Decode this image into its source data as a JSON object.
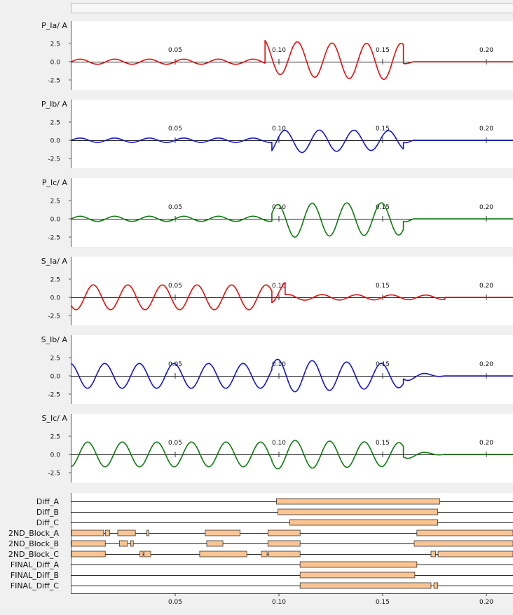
{
  "chart_data": {
    "type": "line",
    "x_range": [
      0.0,
      0.213
    ],
    "x_ticks": [
      0.05,
      0.1,
      0.15,
      0.2
    ],
    "x_tick_labels": [
      "0.05",
      "0.10",
      "0.15",
      "0.20"
    ],
    "y_ticks": [
      -2.5,
      0.0,
      2.5
    ],
    "y_tick_labels": [
      "-2.5",
      "0.0",
      "2.5"
    ],
    "ylim": [
      -3.5,
      4.8
    ],
    "grid": false,
    "colors": {
      "red": "#e01010",
      "blue": "#1515c8",
      "green": "#0f7a0f",
      "bar_fill": "#fcc491"
    },
    "panels": [
      {
        "label": "P_Ia/ A",
        "color": "#e01010",
        "series": [
          {
            "t0": 0.0,
            "t1": 0.0933,
            "amp": 0.35,
            "freq": 60,
            "phase": 0.0,
            "amp_end": 0.35,
            "offset": 0.0
          },
          {
            "t0": 0.0933,
            "t1": 0.16,
            "amp": 2.3,
            "freq": 60,
            "phase": 4.5,
            "amp_end": 2.5,
            "offset": 0.8
          },
          {
            "t0": 0.16,
            "t1": 0.165,
            "amp": 0.4,
            "freq": 60,
            "phase": 0.0,
            "amp_end": 0.0,
            "offset": 0.0
          },
          {
            "t0": 0.165,
            "t1": 0.213,
            "amp": 0.0,
            "freq": 60,
            "phase": 0.0,
            "amp_end": 0.0,
            "offset": 0.0
          }
        ]
      },
      {
        "label": "P_Ib/ A",
        "color": "#1515c8",
        "series": [
          {
            "t0": 0.0,
            "t1": 0.0966,
            "amp": 0.3,
            "freq": 60,
            "phase": 0.0,
            "amp_end": 0.3,
            "offset": 0.0
          },
          {
            "t0": 0.0966,
            "t1": 0.16,
            "amp": 1.6,
            "freq": 60,
            "phase": 0.5,
            "amp_end": 1.3,
            "offset": -0.3
          },
          {
            "t0": 0.16,
            "t1": 0.165,
            "amp": 0.5,
            "freq": 60,
            "phase": 0.0,
            "amp_end": 0.0,
            "offset": 0.0
          },
          {
            "t0": 0.165,
            "t1": 0.213,
            "amp": 0.0,
            "freq": 60,
            "phase": 0.0,
            "amp_end": 0.0,
            "offset": 0.0
          }
        ]
      },
      {
        "label": "P_Ic/ A",
        "color": "#0f7a0f",
        "series": [
          {
            "t0": 0.0,
            "t1": 0.0966,
            "amp": 0.35,
            "freq": 60,
            "phase": 0.0,
            "amp_end": 0.35,
            "offset": 0.0
          },
          {
            "t0": 0.0966,
            "t1": 0.16,
            "amp": 2.3,
            "freq": 60,
            "phase": 1.8,
            "amp_end": 2.2,
            "offset": -0.4
          },
          {
            "t0": 0.16,
            "t1": 0.165,
            "amp": 0.6,
            "freq": 60,
            "phase": 0.0,
            "amp_end": 0.0,
            "offset": 0.0
          },
          {
            "t0": 0.165,
            "t1": 0.213,
            "amp": 0.0,
            "freq": 60,
            "phase": 0.0,
            "amp_end": 0.0,
            "offset": 0.0
          }
        ]
      },
      {
        "label": "S_Ia/ A",
        "color": "#e01010",
        "series": [
          {
            "t0": 0.0,
            "t1": 0.0966,
            "amp": 1.7,
            "freq": 60,
            "phase": 3.9,
            "amp_end": 1.7,
            "offset": 0.0
          },
          {
            "t0": 0.0966,
            "t1": 0.103,
            "amp": 1.6,
            "freq": 60,
            "phase": 0.0,
            "amp_end": 1.6,
            "offset": 0.8
          },
          {
            "t0": 0.103,
            "t1": 0.18,
            "amp": 0.4,
            "freq": 60,
            "phase": 0.0,
            "amp_end": 0.3,
            "offset": 0.0
          },
          {
            "t0": 0.18,
            "t1": 0.213,
            "amp": 0.0,
            "freq": 60,
            "phase": 0.0,
            "amp_end": 0.0,
            "offset": 0.0
          }
        ]
      },
      {
        "label": "S_Ib/ A",
        "color": "#1515c8",
        "series": [
          {
            "t0": 0.0,
            "t1": 0.0966,
            "amp": 1.7,
            "freq": 60,
            "phase": 1.8,
            "amp_end": 1.7,
            "offset": 0.0
          },
          {
            "t0": 0.0966,
            "t1": 0.16,
            "amp": 2.3,
            "freq": 60,
            "phase": 1.8,
            "amp_end": 1.6,
            "offset": 0.0
          },
          {
            "t0": 0.16,
            "t1": 0.18,
            "amp": 0.7,
            "freq": 60,
            "phase": 0.0,
            "amp_end": 0.0,
            "offset": 0.0
          },
          {
            "t0": 0.18,
            "t1": 0.213,
            "amp": 0.0,
            "freq": 60,
            "phase": 0.0,
            "amp_end": 0.0,
            "offset": 0.0
          }
        ]
      },
      {
        "label": "S_Ic/ A",
        "color": "#0f7a0f",
        "series": [
          {
            "t0": 0.0,
            "t1": 0.0966,
            "amp": 1.7,
            "freq": 60,
            "phase": 4.9,
            "amp_end": 1.7,
            "offset": 0.0
          },
          {
            "t0": 0.0966,
            "t1": 0.16,
            "amp": 2.0,
            "freq": 60,
            "phase": 4.9,
            "amp_end": 1.6,
            "offset": 0.0
          },
          {
            "t0": 0.16,
            "t1": 0.18,
            "amp": 0.6,
            "freq": 60,
            "phase": 0.0,
            "amp_end": 0.0,
            "offset": 0.0
          },
          {
            "t0": 0.18,
            "t1": 0.213,
            "amp": 0.0,
            "freq": 60,
            "phase": 0.0,
            "amp_end": 0.0,
            "offset": 0.0
          }
        ]
      }
    ],
    "digital": [
      {
        "label": "Diff_A",
        "intervals": [
          [
            0.0988,
            0.1775
          ]
        ]
      },
      {
        "label": "Diff_B",
        "intervals": [
          [
            0.0995,
            0.1765
          ]
        ]
      },
      {
        "label": "Diff_C",
        "intervals": [
          [
            0.1052,
            0.1765
          ]
        ]
      },
      {
        "label": "2ND_Block_A",
        "intervals": [
          [
            0.0,
            0.0155
          ],
          [
            0.0163,
            0.0184
          ],
          [
            0.0223,
            0.0308
          ],
          [
            0.0363,
            0.0373
          ],
          [
            0.0645,
            0.0813
          ],
          [
            0.0947,
            0.1102
          ],
          [
            0.1665,
            0.213
          ]
        ]
      },
      {
        "label": "2ND_Block_B",
        "intervals": [
          [
            0.0,
            0.0163
          ],
          [
            0.0231,
            0.027
          ],
          [
            0.0285,
            0.0298
          ],
          [
            0.0652,
            0.073
          ],
          [
            0.0947,
            0.1102
          ],
          [
            0.1652,
            0.213
          ]
        ]
      },
      {
        "label": "2ND_Block_C",
        "intervals": [
          [
            0.0,
            0.0163
          ],
          [
            0.033,
            0.0345
          ],
          [
            0.035,
            0.0382
          ],
          [
            0.0618,
            0.0845
          ],
          [
            0.0915,
            0.0943
          ],
          [
            0.095,
            0.1102
          ],
          [
            0.1733,
            0.1755
          ],
          [
            0.1767,
            0.213
          ]
        ]
      },
      {
        "label": "FINAL_Diff_A",
        "intervals": [
          [
            0.1102,
            0.1665
          ]
        ]
      },
      {
        "label": "FINAL_Diff_B",
        "intervals": [
          [
            0.1102,
            0.1655
          ]
        ]
      },
      {
        "label": "FINAL_Diff_C",
        "intervals": [
          [
            0.1102,
            0.1733
          ],
          [
            0.1747,
            0.1765
          ]
        ]
      }
    ]
  }
}
